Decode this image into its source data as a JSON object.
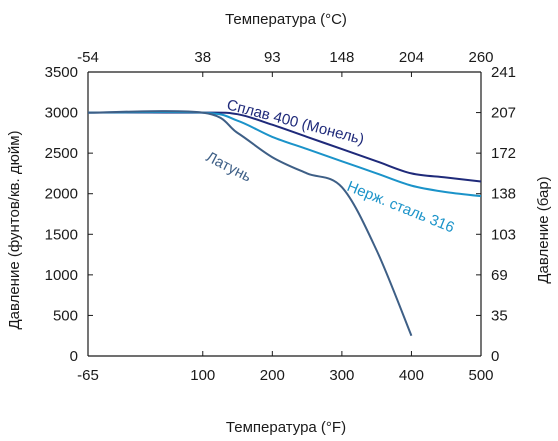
{
  "chart_data": {
    "type": "line",
    "top_axis": {
      "label": "Температура (°C)",
      "ticks": [
        {
          "x": -65,
          "label": "-54"
        },
        {
          "x": 100,
          "label": "38"
        },
        {
          "x": 200,
          "label": "93"
        },
        {
          "x": 300,
          "label": "148"
        },
        {
          "x": 400,
          "label": "204"
        },
        {
          "x": 500,
          "label": "260"
        }
      ]
    },
    "bottom_axis": {
      "label": "Температура (°F)",
      "ticks": [
        {
          "x": -65,
          "label": "-65"
        },
        {
          "x": 100,
          "label": "100"
        },
        {
          "x": 200,
          "label": "200"
        },
        {
          "x": 300,
          "label": "300"
        },
        {
          "x": 400,
          "label": "400"
        },
        {
          "x": 500,
          "label": "500"
        }
      ]
    },
    "left_axis": {
      "label": "Давление (фунтов/кв. дюйм)",
      "ticks": [
        {
          "y": 0,
          "label": "0"
        },
        {
          "y": 500,
          "label": "500"
        },
        {
          "y": 1000,
          "label": "1000"
        },
        {
          "y": 1500,
          "label": "1500"
        },
        {
          "y": 2000,
          "label": "2000"
        },
        {
          "y": 2500,
          "label": "2500"
        },
        {
          "y": 3000,
          "label": "3000"
        },
        {
          "y": 3500,
          "label": "3500"
        }
      ]
    },
    "right_axis": {
      "label": "Давление (бар)",
      "ticks": [
        {
          "y": 0,
          "label": "0"
        },
        {
          "y": 500,
          "label": "35"
        },
        {
          "y": 1000,
          "label": "69"
        },
        {
          "y": 1500,
          "label": "103"
        },
        {
          "y": 2000,
          "label": "138"
        },
        {
          "y": 2500,
          "label": "172"
        },
        {
          "y": 3000,
          "label": "207"
        },
        {
          "y": 3500,
          "label": "241"
        }
      ]
    },
    "xlim": [
      -65,
      500
    ],
    "ylim": [
      0,
      3500
    ],
    "grid": false,
    "series": [
      {
        "name": "Сплав 400 (Монель)",
        "color": "#1f2a7a",
        "points": [
          [
            -65,
            3000
          ],
          [
            100,
            3000
          ],
          [
            150,
            2980
          ],
          [
            200,
            2850
          ],
          [
            250,
            2700
          ],
          [
            300,
            2550
          ],
          [
            350,
            2400
          ],
          [
            400,
            2250
          ],
          [
            450,
            2200
          ],
          [
            500,
            2150
          ]
        ]
      },
      {
        "name": "Нерж. сталь 316",
        "color": "#1b93c9",
        "points": [
          [
            -65,
            3000
          ],
          [
            100,
            3000
          ],
          [
            150,
            2900
          ],
          [
            200,
            2700
          ],
          [
            250,
            2550
          ],
          [
            300,
            2400
          ],
          [
            350,
            2250
          ],
          [
            400,
            2100
          ],
          [
            450,
            2020
          ],
          [
            500,
            1970
          ]
        ]
      },
      {
        "name": "Латунь",
        "color": "#3e5f86",
        "points": [
          [
            -65,
            3000
          ],
          [
            100,
            3000
          ],
          [
            150,
            2750
          ],
          [
            200,
            2450
          ],
          [
            250,
            2250
          ],
          [
            300,
            2080
          ],
          [
            350,
            1300
          ],
          [
            400,
            250
          ]
        ]
      }
    ]
  }
}
